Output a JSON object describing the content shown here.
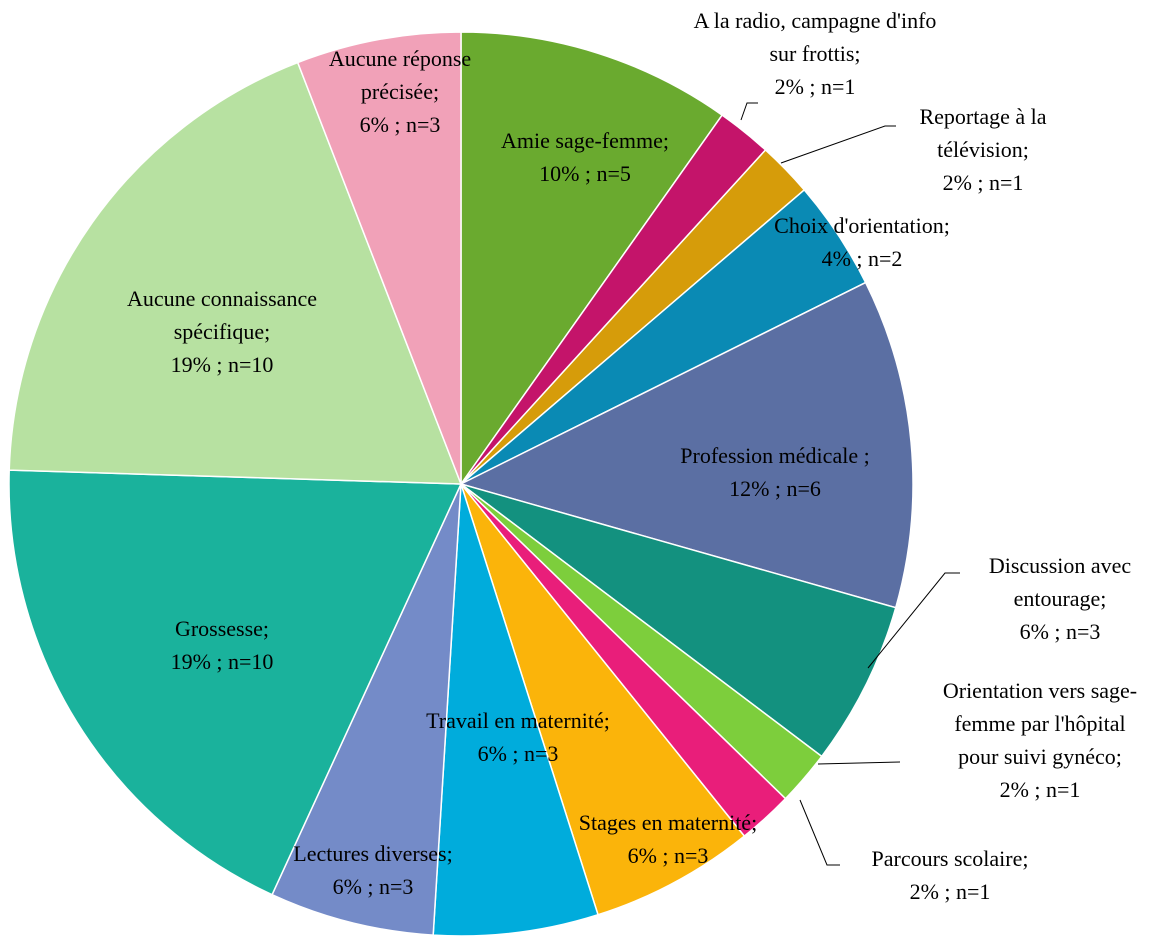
{
  "chart_data": {
    "type": "pie",
    "categories": [
      "Amie sage-femme;",
      "A la radio, campagne d'info sur frottis;",
      "Reportage à la télévision;",
      "Choix d'orientation;",
      "Profession médicale ;",
      "Discussion avec entourage;",
      "Orientation vers sage-femme par l'hôpital pour suivi gynéco;",
      "Parcours scolaire;",
      "Stages en maternité;",
      "Travail en maternité;",
      "Lectures diverses;",
      "Grossesse;",
      "Aucune connaissance spécifique;",
      "Aucune réponse précisée;"
    ],
    "values": [
      10,
      2,
      2,
      4,
      12,
      6,
      2,
      2,
      6,
      6,
      6,
      19,
      19,
      6
    ],
    "value_labels": [
      "10% ; n=5",
      "2% ; n=1",
      "2% ; n=1",
      "4% ; n=2",
      "12% ; n=6",
      "6% ; n=3",
      "2% ; n=1",
      "2% ; n=1",
      "6% ; n=3",
      "6% ; n=3",
      "6% ; n=3",
      "19% ; n=10",
      "19% ; n=10",
      "6% ; n=3"
    ],
    "colors": [
      "#6aaa2f",
      "#c4146a",
      "#d69c0a",
      "#0a8ab4",
      "#5b6fa3",
      "#13917f",
      "#7dce3c",
      "#e91e7a",
      "#fbb40a",
      "#00acdc",
      "#748bc8",
      "#1ab29c",
      "#b7e1a1",
      "#f1a1b8"
    ]
  }
}
